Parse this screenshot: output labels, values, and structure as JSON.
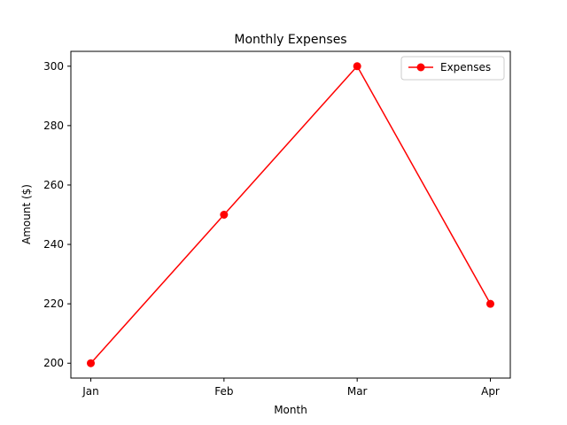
{
  "chart_data": {
    "type": "line",
    "title": "Monthly Expenses",
    "xlabel": "Month",
    "ylabel": "Amount ($)",
    "categories": [
      "Jan",
      "Feb",
      "Mar",
      "Apr"
    ],
    "series": [
      {
        "name": "Expenses",
        "values": [
          200,
          250,
          300,
          220
        ],
        "color": "#ff0000",
        "marker": "circle"
      }
    ],
    "ylim": [
      195,
      305
    ],
    "yticks": [
      200,
      220,
      240,
      260,
      280,
      300
    ],
    "grid": false,
    "legend_position": "top-right"
  }
}
